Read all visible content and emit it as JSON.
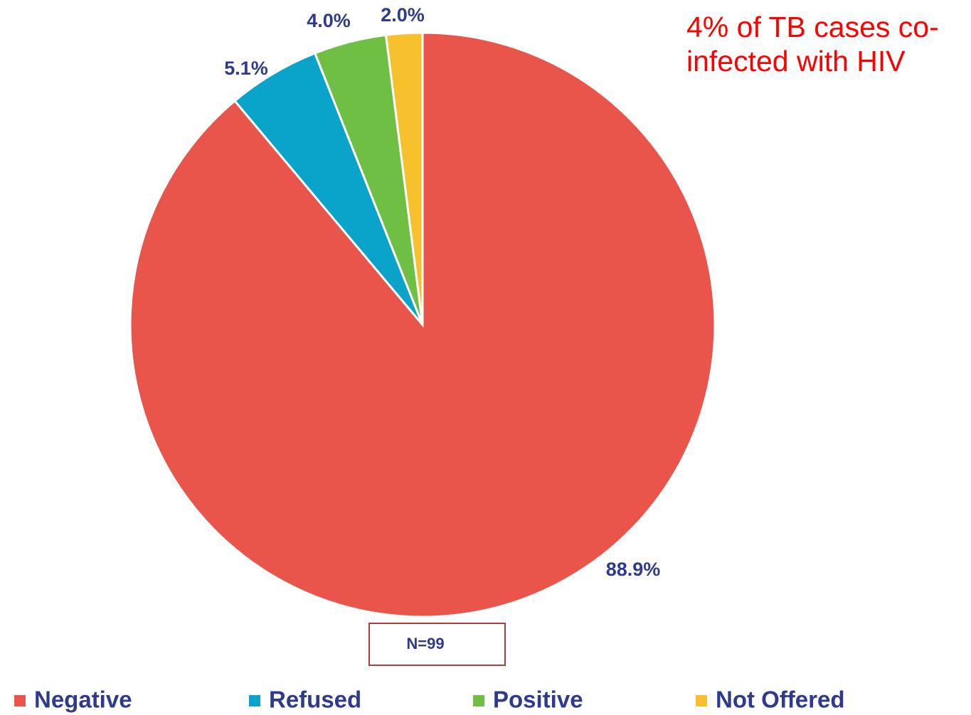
{
  "chart_data": {
    "type": "pie",
    "categories": [
      "Negative",
      "Refused",
      "Positive",
      "Not Offered"
    ],
    "values": [
      88.9,
      5.1,
      4.0,
      2.0
    ],
    "value_labels": [
      "88.9%",
      "5.1%",
      "4.0%",
      "2.0%"
    ],
    "colors": [
      "#e9554a",
      "#0aa3c9",
      "#6fbf44",
      "#f6c12d"
    ],
    "annotations": [
      "4% of TB cases co-infected with HIV",
      "N=99"
    ],
    "legend": "bottom"
  }
}
